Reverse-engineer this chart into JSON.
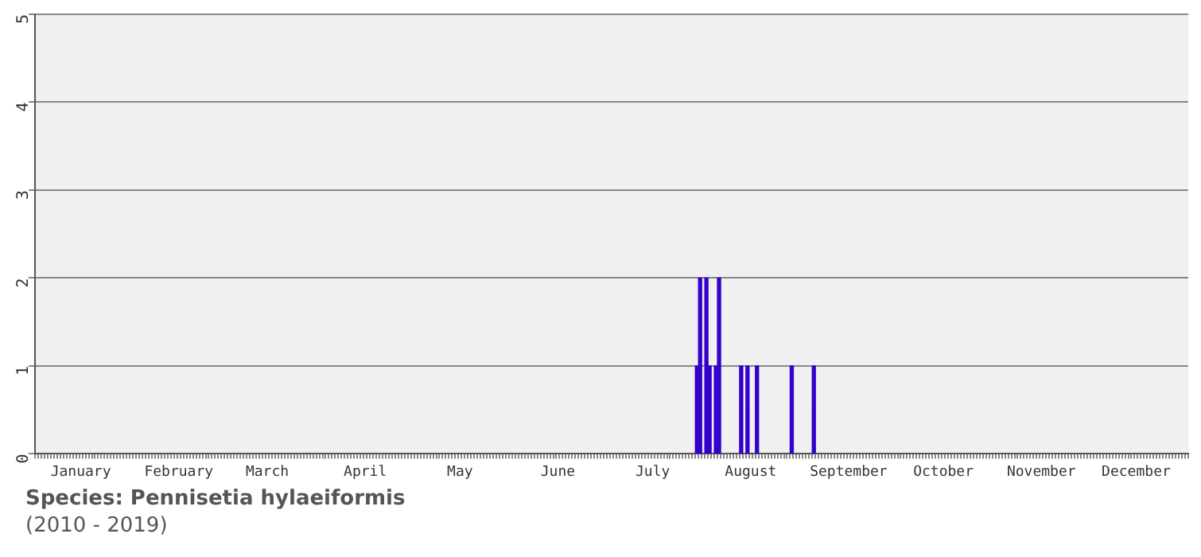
{
  "chart_data": {
    "type": "bar",
    "categories": [
      null,
      null,
      null,
      null,
      null,
      null,
      null,
      null,
      null,
      null,
      null,
      null,
      null,
      null,
      "January",
      null,
      null,
      null,
      null,
      null,
      null,
      null,
      null,
      null,
      null,
      null,
      null,
      null,
      null,
      null,
      null,
      null,
      null,
      null,
      null,
      null,
      null,
      null,
      null,
      null,
      null,
      null,
      null,
      null,
      null,
      "February",
      null,
      null,
      null,
      null,
      null,
      null,
      null,
      null,
      null,
      null,
      null,
      null,
      null,
      null,
      null,
      null,
      null,
      null,
      null,
      null,
      null,
      null,
      null,
      null,
      null,
      null,
      null,
      "March",
      null,
      null,
      null,
      null,
      null,
      null,
      null,
      null,
      null,
      null,
      null,
      null,
      null,
      null,
      null,
      null,
      null,
      null,
      null,
      null,
      null,
      null,
      null,
      null,
      null,
      null,
      null,
      null,
      null,
      null,
      "April",
      null,
      null,
      null,
      null,
      null,
      null,
      null,
      null,
      null,
      null,
      null,
      null,
      null,
      null,
      null,
      null,
      null,
      null,
      null,
      null,
      null,
      null,
      null,
      null,
      null,
      null,
      null,
      null,
      null,
      "May",
      null,
      null,
      null,
      null,
      null,
      null,
      null,
      null,
      null,
      null,
      null,
      null,
      null,
      null,
      null,
      null,
      null,
      null,
      null,
      null,
      null,
      null,
      null,
      null,
      null,
      null,
      null,
      null,
      null,
      null,
      "June",
      null,
      null,
      null,
      null,
      null,
      null,
      null,
      null,
      null,
      null,
      null,
      null,
      null,
      null,
      null,
      null,
      null,
      null,
      null,
      null,
      null,
      null,
      null,
      null,
      null,
      null,
      null,
      null,
      null,
      "July",
      null,
      null,
      null,
      null,
      null,
      null,
      null,
      null,
      null,
      null,
      null,
      null,
      null,
      null,
      null,
      null,
      null,
      null,
      null,
      null,
      null,
      null,
      null,
      null,
      null,
      null,
      null,
      null,
      null,
      null,
      "August",
      null,
      null,
      null,
      null,
      null,
      null,
      null,
      null,
      null,
      null,
      null,
      null,
      null,
      null,
      null,
      null,
      null,
      null,
      null,
      null,
      null,
      null,
      null,
      null,
      null,
      null,
      null,
      null,
      null,
      null,
      "September",
      null,
      null,
      null,
      null,
      null,
      null,
      null,
      null,
      null,
      null,
      null,
      null,
      null,
      null,
      null,
      null,
      null,
      null,
      null,
      null,
      null,
      null,
      null,
      null,
      null,
      null,
      null,
      null,
      null,
      "October",
      null,
      null,
      null,
      null,
      null,
      null,
      null,
      null,
      null,
      null,
      null,
      null,
      null,
      null,
      null,
      null,
      null,
      null,
      null,
      null,
      null,
      null,
      null,
      null,
      null,
      null,
      null,
      null,
      null,
      null,
      "November",
      null,
      null,
      null,
      null,
      null,
      null,
      null,
      null,
      null,
      null,
      null,
      null,
      null,
      null,
      null,
      null,
      null,
      null,
      null,
      null,
      null,
      null,
      null,
      null,
      null,
      null,
      null,
      null,
      null,
      "December",
      null,
      null,
      null,
      null,
      null,
      null,
      null,
      null,
      null,
      null,
      null,
      null,
      null,
      null,
      null,
      null
    ],
    "series": [
      {
        "color": "#3300cc",
        "values": [
          null,
          null,
          null,
          null,
          null,
          null,
          null,
          null,
          null,
          null,
          null,
          null,
          null,
          null,
          null,
          null,
          null,
          null,
          null,
          null,
          null,
          null,
          null,
          null,
          null,
          null,
          null,
          null,
          null,
          null,
          null,
          null,
          null,
          null,
          null,
          null,
          null,
          null,
          null,
          null,
          null,
          null,
          null,
          null,
          null,
          null,
          null,
          null,
          null,
          null,
          null,
          null,
          null,
          null,
          null,
          null,
          null,
          null,
          null,
          null,
          null,
          null,
          null,
          null,
          null,
          null,
          null,
          null,
          null,
          null,
          null,
          null,
          null,
          null,
          null,
          null,
          null,
          null,
          null,
          null,
          null,
          null,
          null,
          null,
          null,
          null,
          null,
          null,
          null,
          null,
          null,
          null,
          null,
          null,
          null,
          null,
          null,
          null,
          null,
          null,
          null,
          null,
          null,
          null,
          null,
          null,
          null,
          null,
          null,
          null,
          null,
          null,
          null,
          null,
          null,
          null,
          null,
          null,
          null,
          null,
          null,
          null,
          null,
          null,
          null,
          null,
          null,
          null,
          null,
          null,
          null,
          null,
          null,
          null,
          null,
          null,
          null,
          null,
          null,
          null,
          null,
          null,
          null,
          null,
          null,
          null,
          null,
          null,
          null,
          null,
          null,
          null,
          null,
          null,
          null,
          null,
          null,
          null,
          null,
          null,
          null,
          null,
          null,
          null,
          null,
          null,
          null,
          null,
          null,
          null,
          null,
          null,
          null,
          null,
          null,
          null,
          null,
          null,
          null,
          null,
          null,
          null,
          null,
          null,
          null,
          null,
          null,
          null,
          null,
          null,
          null,
          null,
          null,
          null,
          null,
          null,
          null,
          null,
          null,
          null,
          null,
          null,
          null,
          null,
          null,
          null,
          null,
          null,
          null,
          1,
          2,
          null,
          2,
          1,
          null,
          1,
          2,
          null,
          null,
          null,
          null,
          null,
          null,
          1,
          null,
          1,
          null,
          null,
          1,
          null,
          null,
          null,
          null,
          null,
          null,
          null,
          null,
          null,
          null,
          1,
          null,
          null,
          null,
          null,
          null,
          null,
          1,
          null,
          null,
          null,
          null,
          null,
          null,
          null,
          null,
          null,
          null,
          null,
          null,
          null,
          null,
          null,
          null,
          null,
          null,
          null,
          null,
          null,
          null,
          null,
          null,
          null,
          null,
          null,
          null,
          null,
          null,
          null,
          null,
          null,
          null,
          null,
          null,
          null,
          null,
          null,
          null,
          null,
          null,
          null,
          null,
          null,
          null,
          null,
          null,
          null,
          null,
          null,
          null,
          null,
          null,
          null,
          null,
          null,
          null,
          null,
          null,
          null,
          null,
          null,
          null,
          null,
          null,
          null,
          null,
          null,
          null,
          null,
          null,
          null,
          null,
          null,
          null,
          null,
          null,
          null,
          null,
          null,
          null,
          null,
          null,
          null,
          null,
          null,
          null,
          null,
          null,
          null,
          null,
          null,
          null,
          null,
          null,
          null,
          null,
          null,
          null,
          null,
          null,
          null,
          null,
          null,
          null,
          null,
          null,
          null,
          null,
          null,
          null,
          null,
          null,
          null,
          null,
          null,
          null
        ]
      }
    ],
    "ylim": [
      0,
      5
    ],
    "yticks": [
      0,
      1,
      2,
      3,
      4,
      5
    ],
    "grid": "y",
    "annotations": [
      "Species: Pennisetia hylaeiformis",
      "(2010 - 2019)"
    ]
  }
}
